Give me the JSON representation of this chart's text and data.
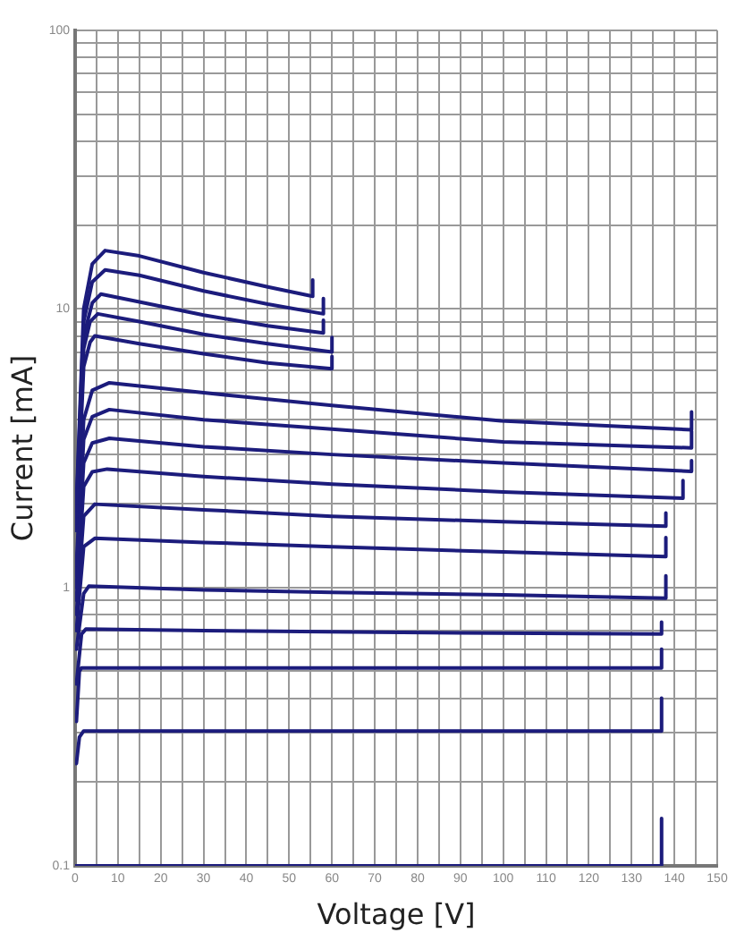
{
  "chart_data": {
    "type": "line",
    "xlabel": "Voltage [V]",
    "ylabel": "Current [mA]",
    "log": "y",
    "grid": true,
    "legend": false,
    "marker": "none",
    "line_style": "solid",
    "xlim": [
      0,
      150
    ],
    "xticks": [
      0,
      {
        "value": 5,
        "label": null
      },
      10,
      {
        "value": 15,
        "label": null
      },
      20,
      {
        "value": 25,
        "label": null
      },
      30,
      {
        "value": 35,
        "label": null
      },
      40,
      {
        "value": 45,
        "label": null
      },
      50,
      {
        "value": 55,
        "label": null
      },
      60,
      {
        "value": 65,
        "label": null
      },
      70,
      {
        "value": 75,
        "label": null
      },
      80,
      {
        "value": 85,
        "label": null
      },
      90,
      {
        "value": 95,
        "label": null
      },
      100,
      {
        "value": 105,
        "label": null
      },
      110,
      {
        "value": 115,
        "label": null
      },
      120,
      {
        "value": 125,
        "label": null
      },
      130,
      {
        "value": 135,
        "label": null
      },
      140,
      {
        "value": 145,
        "label": null
      },
      150
    ],
    "ylim": [
      0.1,
      100
    ],
    "yticks": [
      0.1,
      {
        "value": 0.2,
        "label": null
      },
      {
        "value": 0.3,
        "label": null
      },
      {
        "value": 0.4,
        "label": null
      },
      {
        "value": 0.5,
        "label": null
      },
      {
        "value": 0.6,
        "label": null
      },
      {
        "value": 0.7,
        "label": null
      },
      {
        "value": 0.8,
        "label": null
      },
      {
        "value": 0.9,
        "label": null
      },
      1,
      {
        "value": 2,
        "label": null
      },
      {
        "value": 3,
        "label": null
      },
      {
        "value": 4,
        "label": null
      },
      {
        "value": 5,
        "label": null
      },
      {
        "value": 6,
        "label": null
      },
      {
        "value": 7,
        "label": null
      },
      {
        "value": 8,
        "label": null
      },
      {
        "value": 9,
        "label": null
      },
      10,
      {
        "value": 20,
        "label": null
      },
      {
        "value": 30,
        "label": null
      },
      {
        "value": 40,
        "label": null
      },
      {
        "value": 50,
        "label": null
      },
      {
        "value": 60,
        "label": null
      },
      {
        "value": 70,
        "label": null
      },
      {
        "value": 80,
        "label": null
      },
      {
        "value": 90,
        "label": null
      },
      100
    ],
    "series": [
      {
        "color": "#1c1c7c",
        "x": [
          0.3,
          2,
          4,
          7,
          15,
          30,
          45,
          55.5,
          55.5
        ],
        "values": [
          2.0,
          10,
          14.5,
          16.2,
          15.5,
          13.5,
          12,
          11.1,
          12.7
        ]
      },
      {
        "color": "#1c1c7c",
        "x": [
          0.3,
          2,
          4,
          7,
          15,
          30,
          45,
          58,
          58
        ],
        "values": [
          1.9,
          9,
          12.5,
          13.8,
          13.2,
          11.6,
          10.4,
          9.6,
          10.9
        ]
      },
      {
        "color": "#1c1c7c",
        "x": [
          0.3,
          2,
          4,
          6,
          15,
          30,
          45,
          58,
          58
        ],
        "values": [
          1.8,
          8,
          10.5,
          11.3,
          10.6,
          9.5,
          8.7,
          8.2,
          9.1
        ]
      },
      {
        "color": "#1c1c7c",
        "x": [
          0.3,
          2,
          3.5,
          5.3,
          15,
          30,
          45,
          60,
          60
        ],
        "values": [
          1.7,
          7.2,
          9,
          9.6,
          9,
          8.1,
          7.5,
          7.0,
          7.9
        ]
      },
      {
        "color": "#1c1c7c",
        "x": [
          0.3,
          2,
          3.5,
          4.6,
          15,
          30,
          45,
          60,
          60
        ],
        "values": [
          1.6,
          6.2,
          7.6,
          8.0,
          7.5,
          6.9,
          6.4,
          6.1,
          6.75
        ]
      },
      {
        "color": "#1c1c7c",
        "x": [
          0.3,
          2,
          4,
          8,
          30,
          60,
          99.5,
          144,
          144
        ],
        "values": [
          1.2,
          4.0,
          5.1,
          5.43,
          5.0,
          4.5,
          3.96,
          3.68,
          4.27
        ]
      },
      {
        "color": "#1c1c7c",
        "x": [
          0.3,
          2,
          4,
          8,
          30,
          60,
          100,
          144,
          144
        ],
        "values": [
          1.1,
          3.4,
          4.1,
          4.35,
          4.0,
          3.7,
          3.33,
          3.17,
          3.64
        ]
      },
      {
        "color": "#1c1c7c",
        "x": [
          0.3,
          2,
          4,
          8,
          30,
          60,
          100,
          144,
          144
        ],
        "values": [
          1.0,
          2.8,
          3.3,
          3.43,
          3.2,
          3.0,
          2.8,
          2.61,
          2.85
        ]
      },
      {
        "color": "#1c1c7c",
        "x": [
          0.3,
          2,
          4,
          7.5,
          30,
          60,
          100,
          142,
          142
        ],
        "values": [
          0.9,
          2.3,
          2.6,
          2.66,
          2.5,
          2.35,
          2.2,
          2.09,
          2.42
        ]
      },
      {
        "color": "#1c1c7c",
        "x": [
          0.3,
          2,
          4.6,
          30,
          60,
          100,
          138,
          138
        ],
        "values": [
          0.8,
          1.8,
          1.99,
          1.9,
          1.8,
          1.72,
          1.66,
          1.85
        ]
      },
      {
        "color": "#1c1c7c",
        "x": [
          0.3,
          2,
          4.6,
          30,
          60,
          100,
          138,
          138
        ],
        "values": [
          0.7,
          1.4,
          1.5,
          1.45,
          1.4,
          1.34,
          1.29,
          1.51
        ]
      },
      {
        "color": "#1c1c7c",
        "x": [
          0.3,
          2,
          3.2,
          30,
          60,
          100,
          138,
          138
        ],
        "values": [
          0.6,
          0.95,
          1.01,
          0.98,
          0.96,
          0.94,
          0.915,
          1.1
        ]
      },
      {
        "color": "#1c1c7c",
        "x": [
          0.3,
          1.5,
          2.5,
          30,
          70,
          137,
          137
        ],
        "values": [
          0.45,
          0.68,
          0.708,
          0.7,
          0.69,
          0.68,
          0.75
        ]
      },
      {
        "color": "#1c1c7c",
        "x": [
          0.3,
          1,
          1.5,
          70,
          137,
          137
        ],
        "values": [
          0.33,
          0.5,
          0.514,
          0.514,
          0.514,
          0.6
        ]
      },
      {
        "color": "#1c1c7c",
        "x": [
          0.3,
          1,
          2,
          70,
          137,
          137
        ],
        "values": [
          0.233,
          0.29,
          0.305,
          0.305,
          0.305,
          0.4
        ]
      },
      {
        "color": "#1c1c7c",
        "x": [
          0,
          70,
          137,
          137
        ],
        "values": [
          0.1,
          0.1,
          0.1,
          0.148
        ]
      }
    ]
  }
}
